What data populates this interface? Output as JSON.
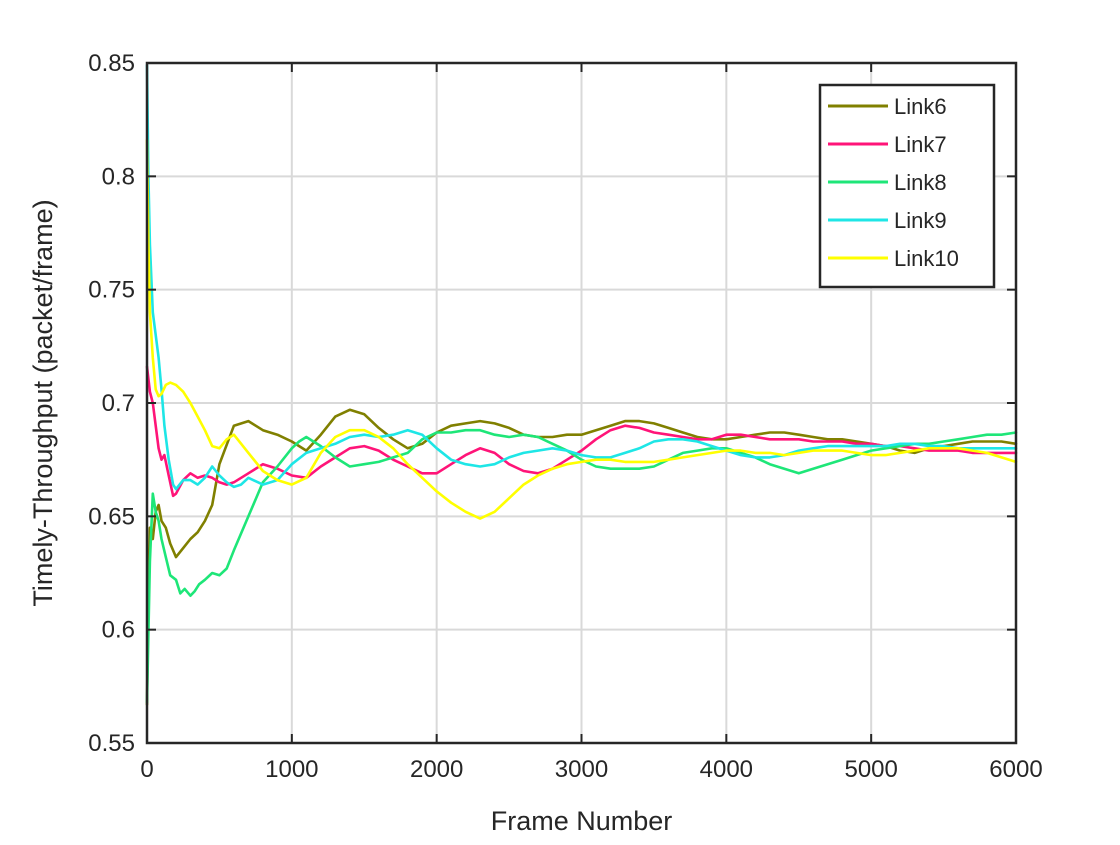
{
  "chart_data": {
    "type": "line",
    "title": "",
    "xlabel": "Frame Number",
    "ylabel": "Timely-Throughput (packet/frame)",
    "xlim": [
      0,
      6000
    ],
    "ylim": [
      0.55,
      0.85
    ],
    "xticks": [
      0,
      1000,
      2000,
      3000,
      4000,
      5000,
      6000
    ],
    "yticks": [
      0.55,
      0.6,
      0.65,
      0.7,
      0.75,
      0.8,
      0.85
    ],
    "xtick_labels": [
      "0",
      "1000",
      "2000",
      "3000",
      "4000",
      "5000",
      "6000"
    ],
    "ytick_labels": [
      "0.55",
      "0.6",
      "0.65",
      "0.7",
      "0.75",
      "0.8",
      "0.85"
    ],
    "grid": true,
    "legend_position": "top-right",
    "series": [
      {
        "name": "Link6",
        "color": "#808000",
        "x": [
          0,
          10,
          20,
          40,
          60,
          80,
          100,
          130,
          160,
          200,
          250,
          300,
          350,
          400,
          450,
          500,
          600,
          700,
          800,
          900,
          1000,
          1100,
          1200,
          1300,
          1400,
          1500,
          1600,
          1700,
          1800,
          1900,
          2000,
          2100,
          2200,
          2300,
          2400,
          2500,
          2600,
          2700,
          2800,
          2900,
          3000,
          3100,
          3200,
          3300,
          3400,
          3500,
          3600,
          3700,
          3800,
          3900,
          4000,
          4100,
          4200,
          4300,
          4400,
          4500,
          4600,
          4700,
          4800,
          4900,
          5000,
          5100,
          5200,
          5300,
          5400,
          5500,
          5600,
          5700,
          5800,
          5900,
          6000
        ],
        "y": [
          0.567,
          0.62,
          0.645,
          0.64,
          0.652,
          0.655,
          0.648,
          0.645,
          0.638,
          0.632,
          0.636,
          0.64,
          0.643,
          0.648,
          0.655,
          0.673,
          0.69,
          0.692,
          0.688,
          0.686,
          0.683,
          0.679,
          0.686,
          0.694,
          0.697,
          0.695,
          0.689,
          0.684,
          0.68,
          0.682,
          0.687,
          0.69,
          0.691,
          0.692,
          0.691,
          0.689,
          0.686,
          0.685,
          0.685,
          0.686,
          0.686,
          0.688,
          0.69,
          0.692,
          0.692,
          0.691,
          0.689,
          0.687,
          0.685,
          0.684,
          0.684,
          0.685,
          0.686,
          0.687,
          0.687,
          0.686,
          0.685,
          0.684,
          0.684,
          0.683,
          0.682,
          0.681,
          0.679,
          0.678,
          0.68,
          0.681,
          0.682,
          0.683,
          0.683,
          0.683,
          0.682
        ]
      },
      {
        "name": "Link7",
        "color": "#ff1478",
        "x": [
          0,
          20,
          40,
          60,
          80,
          100,
          120,
          150,
          180,
          200,
          250,
          300,
          350,
          400,
          450,
          500,
          550,
          600,
          700,
          800,
          900,
          1000,
          1100,
          1200,
          1300,
          1400,
          1500,
          1600,
          1700,
          1800,
          1900,
          2000,
          2100,
          2200,
          2300,
          2400,
          2500,
          2600,
          2700,
          2800,
          2900,
          3000,
          3100,
          3200,
          3300,
          3400,
          3500,
          3600,
          3700,
          3800,
          3900,
          4000,
          4100,
          4200,
          4300,
          4400,
          4500,
          4600,
          4700,
          4800,
          4900,
          5000,
          5100,
          5200,
          5300,
          5400,
          5500,
          5600,
          5700,
          5800,
          5900,
          6000
        ],
        "y": [
          0.716,
          0.705,
          0.7,
          0.69,
          0.68,
          0.675,
          0.677,
          0.668,
          0.659,
          0.66,
          0.666,
          0.669,
          0.667,
          0.668,
          0.667,
          0.665,
          0.664,
          0.665,
          0.669,
          0.673,
          0.671,
          0.668,
          0.667,
          0.672,
          0.676,
          0.68,
          0.681,
          0.679,
          0.675,
          0.672,
          0.669,
          0.669,
          0.673,
          0.677,
          0.68,
          0.678,
          0.673,
          0.67,
          0.669,
          0.671,
          0.675,
          0.679,
          0.684,
          0.688,
          0.69,
          0.689,
          0.687,
          0.686,
          0.685,
          0.684,
          0.684,
          0.686,
          0.686,
          0.685,
          0.684,
          0.684,
          0.684,
          0.683,
          0.683,
          0.683,
          0.682,
          0.682,
          0.681,
          0.681,
          0.68,
          0.679,
          0.679,
          0.679,
          0.678,
          0.678,
          0.678,
          0.678
        ]
      },
      {
        "name": "Link8",
        "color": "#1ee678",
        "x": [
          0,
          20,
          40,
          60,
          80,
          100,
          130,
          160,
          200,
          230,
          260,
          300,
          330,
          360,
          400,
          450,
          500,
          550,
          600,
          700,
          800,
          900,
          1000,
          1050,
          1100,
          1200,
          1300,
          1400,
          1500,
          1600,
          1700,
          1800,
          1900,
          2000,
          2100,
          2200,
          2300,
          2400,
          2500,
          2600,
          2700,
          2800,
          2900,
          3000,
          3100,
          3200,
          3300,
          3400,
          3500,
          3600,
          3700,
          3800,
          3900,
          4000,
          4100,
          4200,
          4300,
          4400,
          4500,
          4600,
          4700,
          4800,
          4900,
          5000,
          5100,
          5200,
          5300,
          5400,
          5500,
          5600,
          5700,
          5800,
          5900,
          6000
        ],
        "y": [
          0.568,
          0.63,
          0.66,
          0.652,
          0.648,
          0.64,
          0.632,
          0.624,
          0.622,
          0.616,
          0.618,
          0.615,
          0.617,
          0.62,
          0.622,
          0.625,
          0.624,
          0.627,
          0.635,
          0.65,
          0.665,
          0.672,
          0.68,
          0.683,
          0.685,
          0.681,
          0.676,
          0.672,
          0.673,
          0.674,
          0.676,
          0.678,
          0.684,
          0.687,
          0.687,
          0.688,
          0.688,
          0.686,
          0.685,
          0.686,
          0.685,
          0.682,
          0.679,
          0.675,
          0.672,
          0.671,
          0.671,
          0.671,
          0.672,
          0.675,
          0.678,
          0.679,
          0.68,
          0.68,
          0.678,
          0.676,
          0.673,
          0.671,
          0.669,
          0.671,
          0.673,
          0.675,
          0.677,
          0.679,
          0.68,
          0.681,
          0.682,
          0.682,
          0.683,
          0.684,
          0.685,
          0.686,
          0.686,
          0.687
        ]
      },
      {
        "name": "Link9",
        "color": "#1ee6e6",
        "x": [
          0,
          10,
          20,
          40,
          60,
          80,
          100,
          120,
          150,
          180,
          200,
          250,
          300,
          350,
          400,
          450,
          500,
          550,
          600,
          650,
          700,
          800,
          900,
          1000,
          1100,
          1200,
          1300,
          1400,
          1500,
          1600,
          1700,
          1800,
          1900,
          2000,
          2100,
          2200,
          2300,
          2400,
          2500,
          2600,
          2700,
          2800,
          2900,
          3000,
          3100,
          3200,
          3300,
          3400,
          3500,
          3600,
          3700,
          3800,
          3900,
          4000,
          4100,
          4200,
          4300,
          4400,
          4500,
          4600,
          4700,
          4800,
          4900,
          5000,
          5100,
          5200,
          5300,
          5400,
          5500,
          5600,
          5700,
          5800,
          5900,
          6000
        ],
        "y": [
          0.849,
          0.8,
          0.77,
          0.74,
          0.73,
          0.72,
          0.706,
          0.69,
          0.675,
          0.664,
          0.662,
          0.666,
          0.666,
          0.664,
          0.667,
          0.672,
          0.668,
          0.665,
          0.663,
          0.664,
          0.667,
          0.664,
          0.666,
          0.673,
          0.678,
          0.68,
          0.682,
          0.685,
          0.686,
          0.685,
          0.686,
          0.688,
          0.686,
          0.68,
          0.675,
          0.673,
          0.672,
          0.673,
          0.676,
          0.678,
          0.679,
          0.68,
          0.679,
          0.677,
          0.676,
          0.676,
          0.678,
          0.68,
          0.683,
          0.684,
          0.684,
          0.683,
          0.681,
          0.679,
          0.677,
          0.676,
          0.676,
          0.677,
          0.679,
          0.68,
          0.681,
          0.681,
          0.681,
          0.681,
          0.681,
          0.682,
          0.682,
          0.681,
          0.681,
          0.68,
          0.68,
          0.68,
          0.68,
          0.68
        ]
      },
      {
        "name": "Link10",
        "color": "#ffff00",
        "x": [
          0,
          10,
          20,
          40,
          60,
          80,
          100,
          130,
          160,
          200,
          250,
          300,
          350,
          400,
          450,
          500,
          550,
          600,
          700,
          800,
          900,
          1000,
          1100,
          1200,
          1300,
          1400,
          1500,
          1600,
          1700,
          1800,
          1900,
          2000,
          2100,
          2200,
          2300,
          2400,
          2500,
          2600,
          2700,
          2800,
          2900,
          3000,
          3100,
          3200,
          3300,
          3400,
          3500,
          3600,
          3700,
          3800,
          3900,
          4000,
          4100,
          4200,
          4300,
          4400,
          4500,
          4600,
          4700,
          4800,
          4900,
          5000,
          5100,
          5200,
          5300,
          5400,
          5500,
          5600,
          5700,
          5800,
          5900,
          6000
        ],
        "y": [
          0.816,
          0.77,
          0.74,
          0.72,
          0.706,
          0.703,
          0.704,
          0.708,
          0.709,
          0.708,
          0.705,
          0.7,
          0.694,
          0.688,
          0.681,
          0.68,
          0.684,
          0.686,
          0.678,
          0.67,
          0.666,
          0.664,
          0.667,
          0.678,
          0.685,
          0.688,
          0.688,
          0.685,
          0.68,
          0.673,
          0.667,
          0.661,
          0.656,
          0.652,
          0.649,
          0.652,
          0.658,
          0.664,
          0.668,
          0.671,
          0.673,
          0.674,
          0.675,
          0.675,
          0.674,
          0.674,
          0.674,
          0.675,
          0.676,
          0.677,
          0.678,
          0.679,
          0.679,
          0.678,
          0.678,
          0.677,
          0.678,
          0.679,
          0.679,
          0.679,
          0.678,
          0.677,
          0.677,
          0.678,
          0.679,
          0.68,
          0.68,
          0.68,
          0.679,
          0.678,
          0.676,
          0.674
        ]
      }
    ]
  }
}
